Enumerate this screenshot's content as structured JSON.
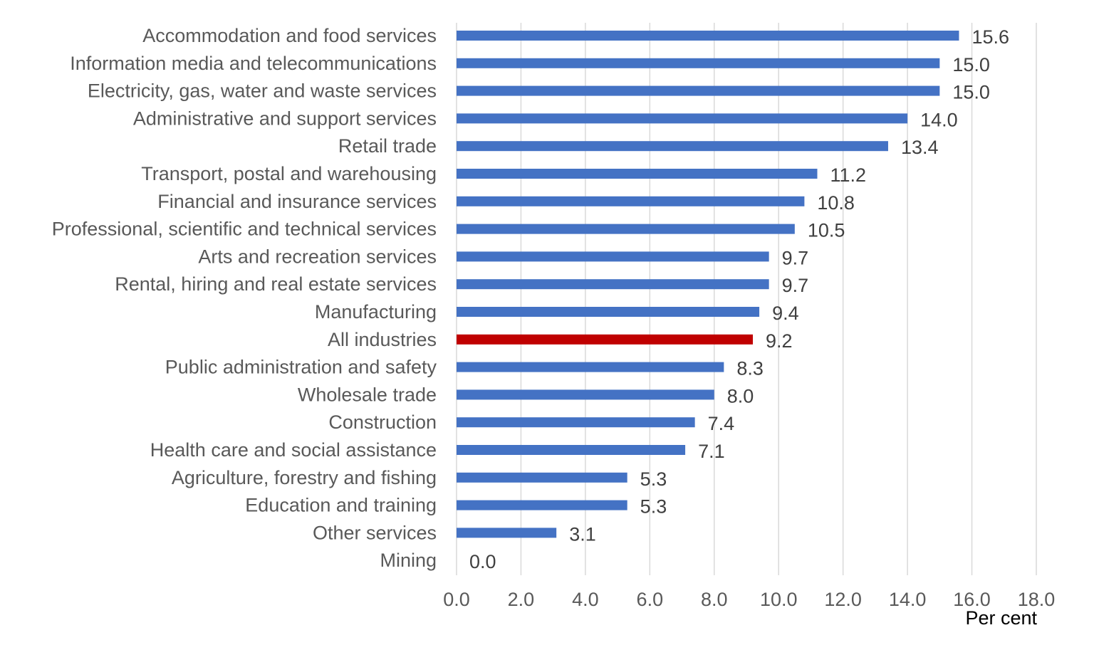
{
  "chart_data": {
    "type": "bar",
    "orientation": "horizontal",
    "categories": [
      "Accommodation and food services",
      "Information media and telecommunications",
      "Electricity, gas, water and waste services",
      "Administrative and support services",
      "Retail trade",
      "Transport, postal and warehousing",
      "Financial and insurance services",
      "Professional, scientific and technical services",
      "Arts and recreation services",
      "Rental, hiring and real estate services",
      "Manufacturing",
      "All industries",
      "Public administration and safety",
      "Wholesale trade",
      "Construction",
      "Health care and social assistance",
      "Agriculture, forestry and fishing",
      "Education and training",
      "Other services",
      "Mining"
    ],
    "values": [
      15.6,
      15.0,
      15.0,
      14.0,
      13.4,
      11.2,
      10.8,
      10.5,
      9.7,
      9.7,
      9.4,
      9.2,
      8.3,
      8.0,
      7.4,
      7.1,
      5.3,
      5.3,
      3.1,
      0.0
    ],
    "value_labels": [
      "15.6",
      "15.0",
      "15.0",
      "14.0",
      "13.4",
      "11.2",
      "10.8",
      "10.5",
      "9.7",
      "9.7",
      "9.4",
      "9.2",
      "8.3",
      "8.0",
      "7.4",
      "7.1",
      "5.3",
      "5.3",
      "3.1",
      "0.0"
    ],
    "highlight_category": "All industries",
    "xlabel": "Per cent",
    "ylabel": "",
    "xlim": [
      0,
      18
    ],
    "x_ticks": [
      "0.0",
      "2.0",
      "4.0",
      "6.0",
      "8.0",
      "10.0",
      "12.0",
      "14.0",
      "16.0",
      "18.0"
    ],
    "grid": "vertical",
    "legend": "none",
    "colors": {
      "bar": "#4472c4",
      "highlight": "#c00000",
      "grid": "#d9d9d9"
    }
  }
}
